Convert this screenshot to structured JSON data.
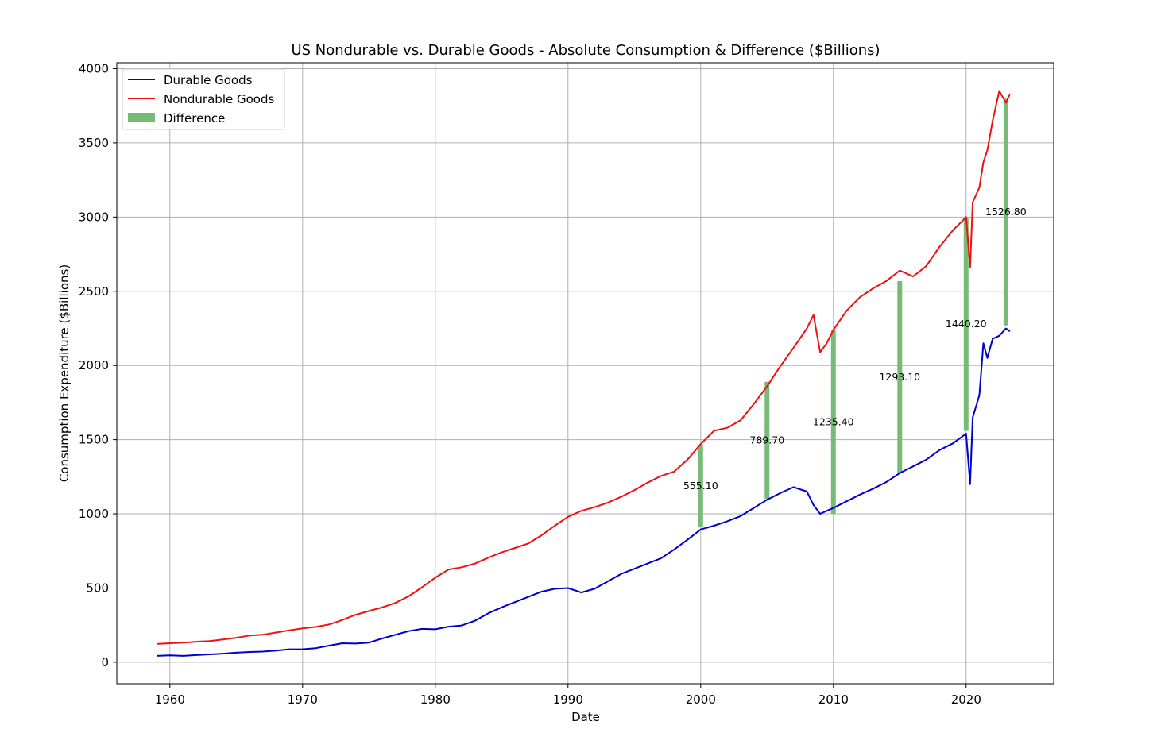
{
  "chart_data": {
    "type": "line",
    "title": "US Nondurable vs. Durable Goods - Absolute Consumption & Difference ($Billions)",
    "xlabel": "Date",
    "ylabel": "Consumption Expenditure ($Billions)",
    "xlim": [
      1956.0,
      2026.6
    ],
    "ylim": [
      -145,
      4040
    ],
    "x_ticks": [
      1960,
      1970,
      1980,
      1990,
      2000,
      2010,
      2020
    ],
    "x_tick_labels": [
      "1960",
      "1970",
      "1980",
      "1990",
      "2000",
      "2010",
      "2020"
    ],
    "y_ticks": [
      0,
      500,
      1000,
      1500,
      2000,
      2500,
      3000,
      3500,
      4000
    ],
    "y_tick_labels": [
      "0",
      "500",
      "1000",
      "1500",
      "2000",
      "2500",
      "3000",
      "3500",
      "4000"
    ],
    "grid": true,
    "legend_position": "top-left",
    "legend": [
      "Durable Goods",
      "Nondurable Goods",
      "Difference"
    ],
    "series": [
      {
        "name": "Durable Goods",
        "color": "#0000cc",
        "points": [
          [
            1959,
            43
          ],
          [
            1960,
            46
          ],
          [
            1961,
            43
          ],
          [
            1962,
            48
          ],
          [
            1963,
            53
          ],
          [
            1964,
            58
          ],
          [
            1965,
            64
          ],
          [
            1966,
            69
          ],
          [
            1967,
            72
          ],
          [
            1968,
            78
          ],
          [
            1969,
            87
          ],
          [
            1970,
            88
          ],
          [
            1971,
            95
          ],
          [
            1972,
            112
          ],
          [
            1973,
            128
          ],
          [
            1974,
            126
          ],
          [
            1975,
            132
          ],
          [
            1976,
            160
          ],
          [
            1977,
            185
          ],
          [
            1978,
            210
          ],
          [
            1979,
            225
          ],
          [
            1980,
            222
          ],
          [
            1981,
            240
          ],
          [
            1982,
            248
          ],
          [
            1983,
            280
          ],
          [
            1984,
            330
          ],
          [
            1985,
            370
          ],
          [
            1986,
            405
          ],
          [
            1987,
            440
          ],
          [
            1988,
            475
          ],
          [
            1989,
            495
          ],
          [
            1990,
            500
          ],
          [
            1991,
            470
          ],
          [
            1992,
            495
          ],
          [
            1993,
            545
          ],
          [
            1994,
            595
          ],
          [
            1995,
            630
          ],
          [
            1996,
            665
          ],
          [
            1997,
            700
          ],
          [
            1998,
            760
          ],
          [
            1999,
            825
          ],
          [
            2000,
            895
          ],
          [
            2001,
            920
          ],
          [
            2002,
            950
          ],
          [
            2003,
            985
          ],
          [
            2004,
            1040
          ],
          [
            2005,
            1095
          ],
          [
            2006,
            1140
          ],
          [
            2007,
            1180
          ],
          [
            2008,
            1150
          ],
          [
            2008.5,
            1060
          ],
          [
            2009,
            1000
          ],
          [
            2009.5,
            1020
          ],
          [
            2010,
            1040
          ],
          [
            2011,
            1085
          ],
          [
            2012,
            1130
          ],
          [
            2013,
            1170
          ],
          [
            2014,
            1215
          ],
          [
            2015,
            1275
          ],
          [
            2016,
            1320
          ],
          [
            2017,
            1365
          ],
          [
            2018,
            1430
          ],
          [
            2019,
            1475
          ],
          [
            2020,
            1540
          ],
          [
            2020.3,
            1200
          ],
          [
            2020.5,
            1650
          ],
          [
            2021,
            1800
          ],
          [
            2021.3,
            2150
          ],
          [
            2021.6,
            2050
          ],
          [
            2022,
            2180
          ],
          [
            2022.5,
            2200
          ],
          [
            2023,
            2250
          ],
          [
            2023.3,
            2230
          ]
        ]
      },
      {
        "name": "Nondurable Goods",
        "color": "#ee1111",
        "points": [
          [
            1959,
            123
          ],
          [
            1960,
            128
          ],
          [
            1961,
            132
          ],
          [
            1962,
            138
          ],
          [
            1963,
            143
          ],
          [
            1964,
            153
          ],
          [
            1965,
            165
          ],
          [
            1966,
            180
          ],
          [
            1967,
            185
          ],
          [
            1968,
            200
          ],
          [
            1969,
            215
          ],
          [
            1970,
            228
          ],
          [
            1971,
            238
          ],
          [
            1972,
            255
          ],
          [
            1973,
            285
          ],
          [
            1974,
            320
          ],
          [
            1975,
            345
          ],
          [
            1976,
            370
          ],
          [
            1977,
            400
          ],
          [
            1978,
            445
          ],
          [
            1979,
            505
          ],
          [
            1980,
            570
          ],
          [
            1981,
            625
          ],
          [
            1982,
            640
          ],
          [
            1983,
            665
          ],
          [
            1984,
            705
          ],
          [
            1985,
            740
          ],
          [
            1986,
            770
          ],
          [
            1987,
            800
          ],
          [
            1988,
            855
          ],
          [
            1989,
            920
          ],
          [
            1990,
            980
          ],
          [
            1991,
            1020
          ],
          [
            1992,
            1045
          ],
          [
            1993,
            1075
          ],
          [
            1994,
            1115
          ],
          [
            1995,
            1160
          ],
          [
            1996,
            1210
          ],
          [
            1997,
            1255
          ],
          [
            1998,
            1285
          ],
          [
            1999,
            1365
          ],
          [
            2000,
            1470
          ],
          [
            2001,
            1560
          ],
          [
            2002,
            1580
          ],
          [
            2003,
            1630
          ],
          [
            2004,
            1740
          ],
          [
            2005,
            1860
          ],
          [
            2006,
            1995
          ],
          [
            2007,
            2120
          ],
          [
            2008,
            2250
          ],
          [
            2008.5,
            2340
          ],
          [
            2009,
            2090
          ],
          [
            2009.5,
            2150
          ],
          [
            2010,
            2240
          ],
          [
            2011,
            2370
          ],
          [
            2012,
            2460
          ],
          [
            2013,
            2520
          ],
          [
            2014,
            2570
          ],
          [
            2015,
            2640
          ],
          [
            2016,
            2600
          ],
          [
            2017,
            2670
          ],
          [
            2018,
            2800
          ],
          [
            2019,
            2910
          ],
          [
            2020,
            3000
          ],
          [
            2020.3,
            2660
          ],
          [
            2020.5,
            3100
          ],
          [
            2021,
            3200
          ],
          [
            2021.3,
            3370
          ],
          [
            2021.6,
            3450
          ],
          [
            2022,
            3650
          ],
          [
            2022.5,
            3850
          ],
          [
            2023,
            3770
          ],
          [
            2023.3,
            3830
          ]
        ]
      }
    ],
    "difference": {
      "name": "Difference",
      "color": "#77bb77",
      "bars": [
        {
          "x": 2000,
          "low": 910,
          "high": 1465,
          "label": "555.10"
        },
        {
          "x": 2005,
          "low": 1100,
          "high": 1890,
          "label": "789.70"
        },
        {
          "x": 2010,
          "low": 1000,
          "high": 2235,
          "label": "1235.40"
        },
        {
          "x": 2015,
          "low": 1275,
          "high": 2568,
          "label": "1293.10"
        },
        {
          "x": 2020,
          "low": 1560,
          "high": 3000,
          "label": "1440.20"
        },
        {
          "x": 2023,
          "low": 2270,
          "high": 3797,
          "label": "1526.80"
        }
      ]
    }
  }
}
